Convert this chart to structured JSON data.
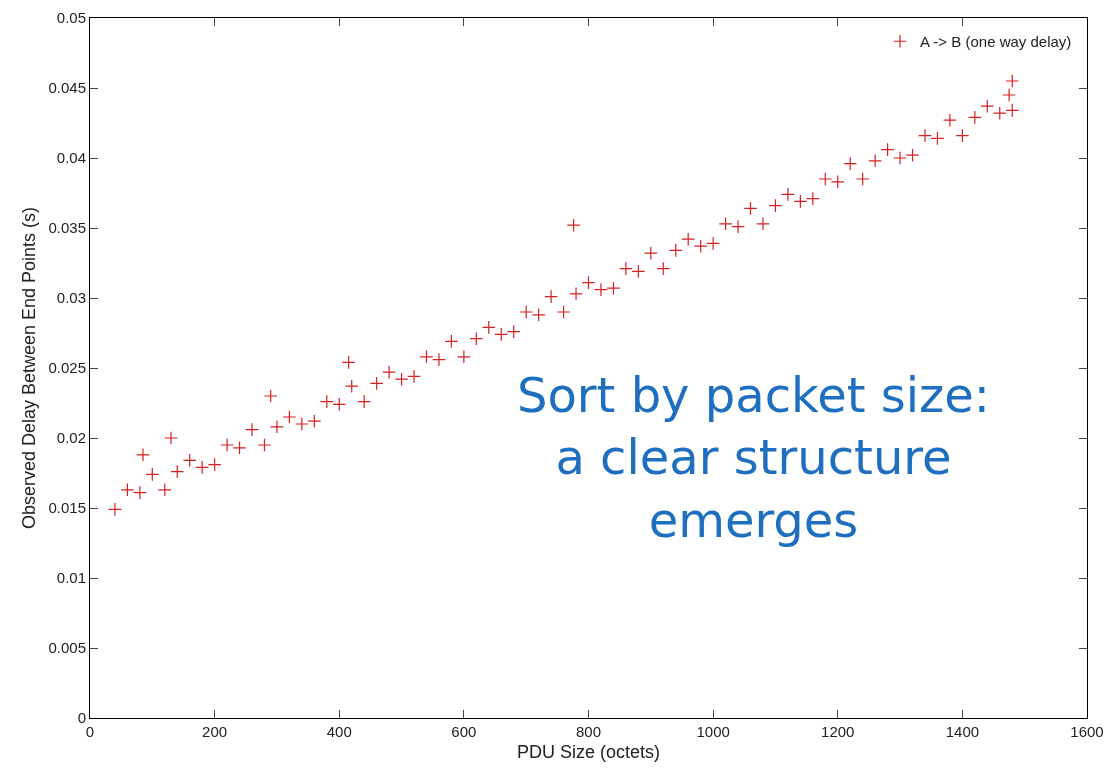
{
  "chart_data": {
    "type": "scatter",
    "xlabel": "PDU Size (octets)",
    "ylabel": "Observed Delay Between End Points (s)",
    "xlim": [
      0,
      1600
    ],
    "xticks": [
      0,
      200,
      400,
      600,
      800,
      1000,
      1200,
      1400,
      1600
    ],
    "ylim": [
      0,
      0.05
    ],
    "yticks": [
      0,
      0.005,
      0.01,
      0.015,
      0.02,
      0.025,
      0.03,
      0.035,
      0.04,
      0.045,
      0.05
    ],
    "grid": false,
    "legend": "top right",
    "marker": "cross",
    "annotations": [
      "Sort by packet size:\na clear structure\nemerges"
    ],
    "series": [
      {
        "name": "A -> B (one way delay)",
        "color": "#d62020",
        "x": [
          40,
          60,
          80,
          100,
          120,
          140,
          160,
          180,
          200,
          220,
          240,
          260,
          280,
          300,
          320,
          340,
          360,
          380,
          400,
          420,
          440,
          460,
          480,
          500,
          520,
          540,
          560,
          580,
          600,
          620,
          640,
          660,
          680,
          700,
          720,
          740,
          760,
          780,
          800,
          820,
          840,
          860,
          880,
          900,
          920,
          940,
          960,
          980,
          1000,
          1020,
          1040,
          1060,
          1080,
          1100,
          1120,
          1140,
          1160,
          1180,
          1200,
          1220,
          1240,
          1260,
          1280,
          1300,
          1320,
          1340,
          1360,
          1380,
          1400,
          1420,
          1440,
          1460,
          1480,
          1480,
          1475,
          85,
          130,
          290,
          415,
          776
        ],
        "values": [
          0.0149,
          0.0163,
          0.0161,
          0.0174,
          0.0163,
          0.0176,
          0.0184,
          0.0179,
          0.0181,
          0.0195,
          0.0193,
          0.0206,
          0.0195,
          0.0208,
          0.0215,
          0.021,
          0.0212,
          0.0226,
          0.0224,
          0.0237,
          0.0226,
          0.0239,
          0.0247,
          0.0242,
          0.0244,
          0.0258,
          0.0256,
          0.0269,
          0.0258,
          0.0271,
          0.0279,
          0.0274,
          0.0276,
          0.029,
          0.0288,
          0.0301,
          0.029,
          0.0303,
          0.0311,
          0.0306,
          0.0307,
          0.0321,
          0.0319,
          0.0332,
          0.0321,
          0.0334,
          0.0342,
          0.0337,
          0.0339,
          0.0353,
          0.0351,
          0.0364,
          0.0353,
          0.0366,
          0.0374,
          0.0369,
          0.0371,
          0.0385,
          0.0383,
          0.0396,
          0.0385,
          0.0398,
          0.0406,
          0.04,
          0.0402,
          0.0416,
          0.0414,
          0.0427,
          0.0416,
          0.0429,
          0.0437,
          0.0432,
          0.0434,
          0.0455,
          0.0445,
          0.0188,
          0.02,
          0.023,
          0.0254,
          0.0352
        ]
      }
    ]
  }
}
